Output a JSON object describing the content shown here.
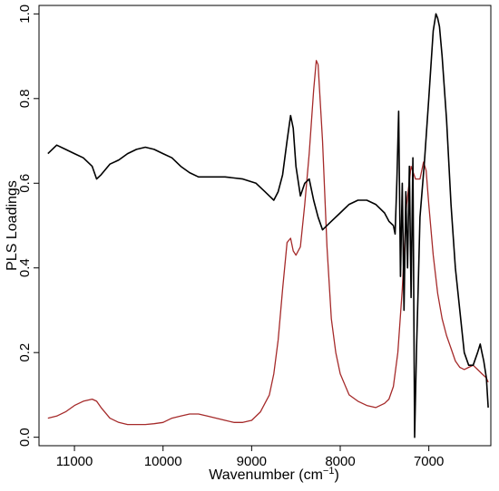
{
  "chart_data": {
    "type": "line",
    "title": "",
    "xlabel": "Wavenumber (cm",
    "xlabel_superscript": "−1",
    "xlabel_suffix": ")",
    "ylabel": "PLS Loadings",
    "xlim": [
      11400,
      6300
    ],
    "ylim": [
      -0.02,
      1.02
    ],
    "x_reversed": true,
    "grid": false,
    "x_ticks": [
      11000,
      10000,
      9000,
      8000,
      7000
    ],
    "x_tick_labels": [
      "11000",
      "10000",
      "9000",
      "8000",
      "7000"
    ],
    "y_ticks": [
      0.0,
      0.2,
      0.4,
      0.6,
      0.8,
      1.0
    ],
    "y_tick_labels": [
      "0.0",
      "0.2",
      "0.4",
      "0.6",
      "0.8",
      "1.0"
    ],
    "series": [
      {
        "color": "#000000",
        "x": [
          11300,
          11200,
          11100,
          11000,
          10900,
          10800,
          10750,
          10700,
          10600,
          10500,
          10400,
          10300,
          10200,
          10100,
          10000,
          9900,
          9800,
          9700,
          9600,
          9500,
          9300,
          9100,
          8950,
          8850,
          8800,
          8750,
          8700,
          8650,
          8600,
          8560,
          8530,
          8500,
          8450,
          8400,
          8350,
          8300,
          8250,
          8200,
          8100,
          8000,
          7900,
          7800,
          7700,
          7600,
          7500,
          7450,
          7400,
          7380,
          7360,
          7340,
          7320,
          7300,
          7280,
          7260,
          7240,
          7220,
          7200,
          7180,
          7160,
          7140,
          7120,
          7100,
          7050,
          7000,
          6950,
          6920,
          6900,
          6880,
          6850,
          6800,
          6750,
          6700,
          6650,
          6600,
          6550,
          6500,
          6450,
          6420,
          6400,
          6380,
          6350,
          6330
        ],
        "values": [
          0.67,
          0.69,
          0.68,
          0.67,
          0.66,
          0.64,
          0.61,
          0.62,
          0.645,
          0.655,
          0.67,
          0.68,
          0.685,
          0.68,
          0.67,
          0.66,
          0.64,
          0.625,
          0.615,
          0.615,
          0.615,
          0.61,
          0.6,
          0.58,
          0.57,
          0.56,
          0.58,
          0.62,
          0.7,
          0.76,
          0.73,
          0.64,
          0.57,
          0.6,
          0.61,
          0.56,
          0.52,
          0.49,
          0.51,
          0.53,
          0.55,
          0.56,
          0.56,
          0.55,
          0.53,
          0.51,
          0.5,
          0.48,
          0.61,
          0.77,
          0.38,
          0.6,
          0.3,
          0.58,
          0.4,
          0.64,
          0.33,
          0.66,
          0.0,
          0.2,
          0.35,
          0.52,
          0.65,
          0.8,
          0.96,
          1.0,
          0.99,
          0.97,
          0.9,
          0.75,
          0.55,
          0.4,
          0.3,
          0.2,
          0.17,
          0.17,
          0.2,
          0.22,
          0.2,
          0.18,
          0.14,
          0.07
        ]
      },
      {
        "color": "#a52a2a",
        "x": [
          11300,
          11200,
          11100,
          11000,
          10900,
          10800,
          10750,
          10700,
          10600,
          10500,
          10400,
          10300,
          10200,
          10100,
          10000,
          9900,
          9800,
          9700,
          9600,
          9500,
          9400,
          9300,
          9200,
          9100,
          9000,
          8900,
          8800,
          8750,
          8700,
          8650,
          8600,
          8560,
          8530,
          8500,
          8450,
          8400,
          8350,
          8300,
          8270,
          8250,
          8200,
          8150,
          8100,
          8050,
          8000,
          7900,
          7800,
          7700,
          7600,
          7500,
          7450,
          7400,
          7350,
          7300,
          7250,
          7200,
          7150,
          7100,
          7060,
          7030,
          7000,
          6950,
          6900,
          6850,
          6800,
          6750,
          6700,
          6650,
          6600,
          6550,
          6500,
          6450,
          6400,
          6350,
          6330
        ],
        "values": [
          0.045,
          0.05,
          0.06,
          0.075,
          0.085,
          0.09,
          0.085,
          0.07,
          0.045,
          0.035,
          0.03,
          0.03,
          0.03,
          0.032,
          0.035,
          0.045,
          0.05,
          0.055,
          0.055,
          0.05,
          0.045,
          0.04,
          0.035,
          0.035,
          0.04,
          0.06,
          0.1,
          0.15,
          0.23,
          0.35,
          0.46,
          0.47,
          0.44,
          0.43,
          0.45,
          0.55,
          0.67,
          0.82,
          0.89,
          0.88,
          0.7,
          0.45,
          0.28,
          0.2,
          0.15,
          0.1,
          0.085,
          0.075,
          0.07,
          0.08,
          0.09,
          0.12,
          0.2,
          0.35,
          0.55,
          0.64,
          0.61,
          0.61,
          0.65,
          0.63,
          0.55,
          0.43,
          0.34,
          0.28,
          0.24,
          0.21,
          0.18,
          0.165,
          0.16,
          0.165,
          0.17,
          0.16,
          0.15,
          0.14,
          0.13
        ]
      }
    ]
  }
}
